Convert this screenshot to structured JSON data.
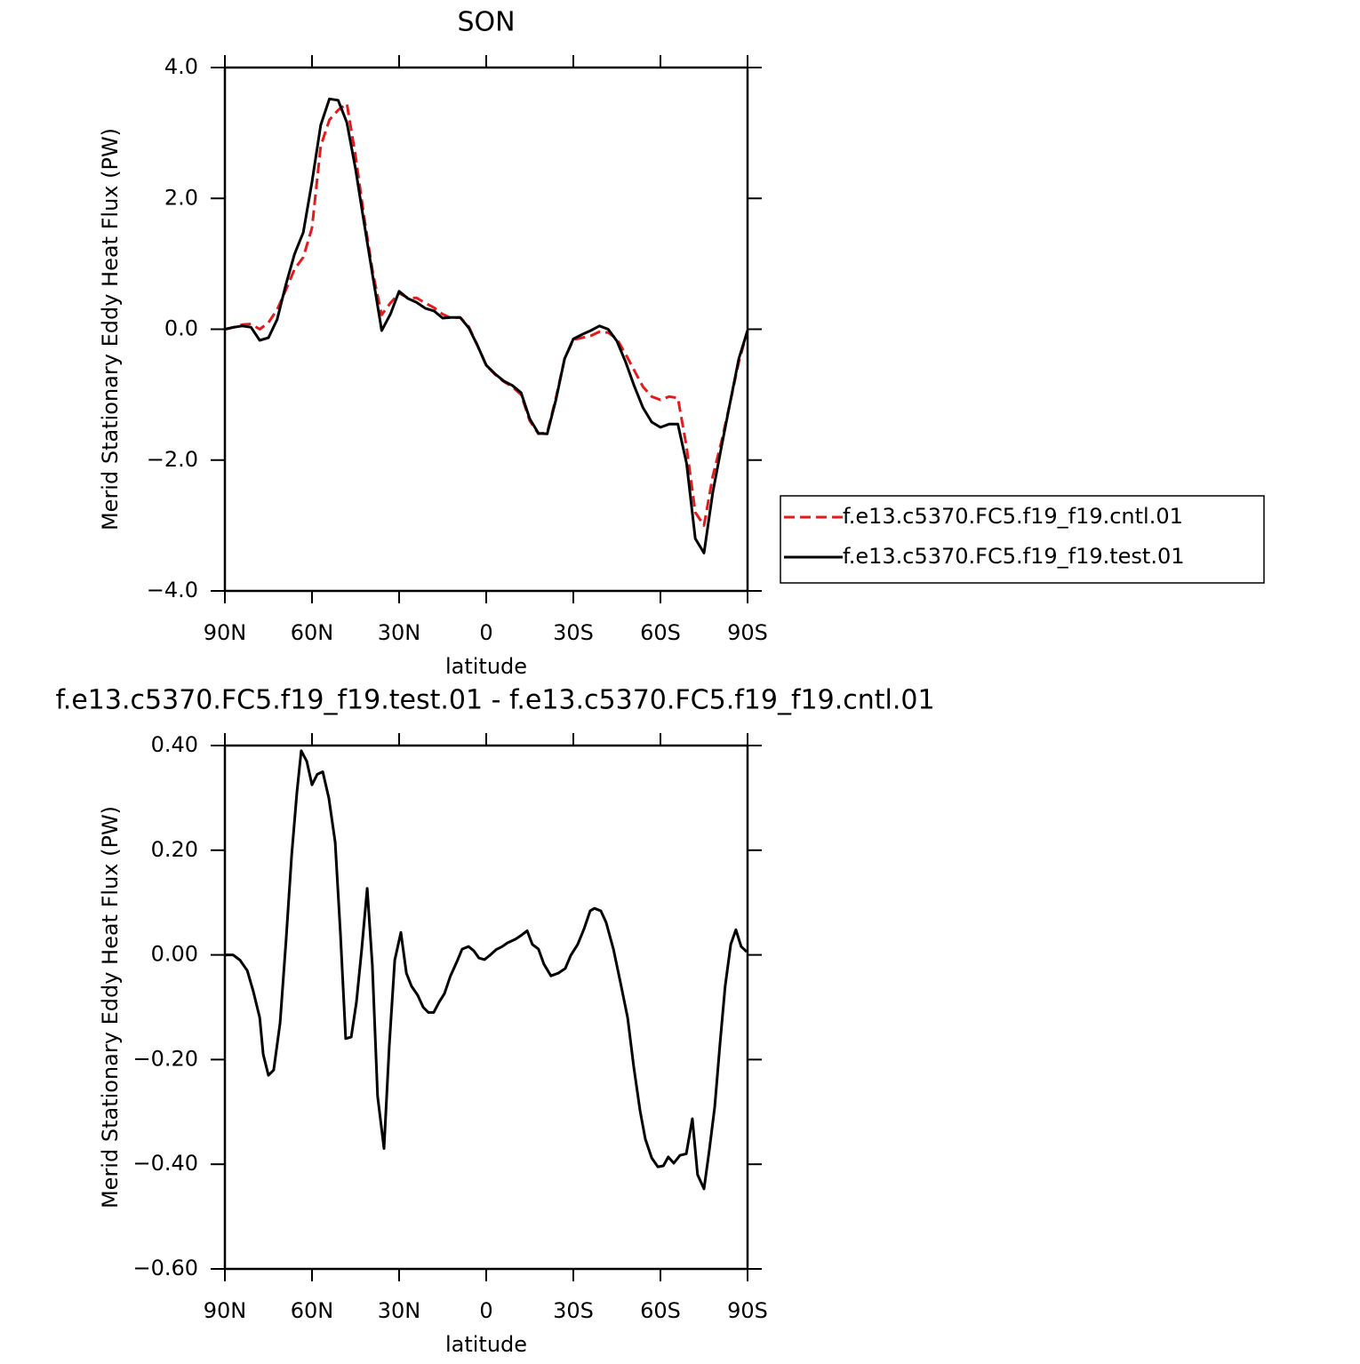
{
  "chart_data": [
    {
      "type": "line",
      "title": "SON",
      "xlabel": "latitude",
      "ylabel": "Merid Stationary Eddy Heat Flux (PW)",
      "x": [
        90,
        87,
        84,
        81,
        78,
        75,
        72,
        69,
        66,
        63,
        60,
        57,
        54,
        51,
        48,
        45,
        42,
        39,
        36,
        33,
        30,
        27,
        24,
        21,
        18,
        15,
        12,
        9,
        6,
        3,
        0,
        -3,
        -6,
        -9,
        -12,
        -15,
        -18,
        -21,
        -24,
        -27,
        -30,
        -33,
        -36,
        -39,
        -42,
        -45,
        -48,
        -51,
        -54,
        -57,
        -60,
        -63,
        -66,
        -69,
        -72,
        -75,
        -78,
        -81,
        -84,
        -87,
        -90
      ],
      "series": [
        {
          "name": "f.e13.c5370.FC5.f19_f19.cntl.01",
          "color": "#e41a1c",
          "style": "dashed",
          "values": [
            0.0,
            0.03,
            0.07,
            0.08,
            0.0,
            0.1,
            0.3,
            0.6,
            0.92,
            1.1,
            1.55,
            2.8,
            3.2,
            3.35,
            3.45,
            2.65,
            1.7,
            0.85,
            0.22,
            0.4,
            0.55,
            0.48,
            0.48,
            0.4,
            0.33,
            0.23,
            0.17,
            0.18,
            0.04,
            -0.25,
            -0.55,
            -0.69,
            -0.8,
            -0.88,
            -1.0,
            -1.4,
            -1.6,
            -1.58,
            -1.05,
            -0.45,
            -0.16,
            -0.13,
            -0.1,
            -0.04,
            -0.05,
            -0.15,
            -0.38,
            -0.63,
            -0.88,
            -1.03,
            -1.08,
            -1.03,
            -1.05,
            -1.8,
            -2.8,
            -3.0,
            -2.25,
            -1.72,
            -1.12,
            -0.5,
            -0.02
          ]
        },
        {
          "name": "f.e13.c5370.FC5.f19_f19.test.01",
          "color": "#000000",
          "style": "solid",
          "values": [
            0.0,
            0.03,
            0.05,
            0.03,
            -0.17,
            -0.13,
            0.15,
            0.68,
            1.15,
            1.48,
            2.25,
            3.12,
            3.52,
            3.5,
            3.16,
            2.45,
            1.61,
            0.79,
            -0.02,
            0.23,
            0.58,
            0.47,
            0.41,
            0.32,
            0.28,
            0.17,
            0.18,
            0.18,
            0.02,
            -0.25,
            -0.55,
            -0.68,
            -0.79,
            -0.86,
            -0.97,
            -1.37,
            -1.59,
            -1.6,
            -1.08,
            -0.45,
            -0.15,
            -0.08,
            -0.02,
            0.05,
            0.0,
            -0.18,
            -0.5,
            -0.87,
            -1.2,
            -1.42,
            -1.5,
            -1.45,
            -1.45,
            -2.05,
            -3.2,
            -3.42,
            -2.5,
            -1.8,
            -1.12,
            -0.45,
            -0.02
          ]
        }
      ],
      "xlim": [
        90,
        -90
      ],
      "xticks": [
        {
          "value": 90,
          "label": "90N"
        },
        {
          "value": 60,
          "label": "60N"
        },
        {
          "value": 30,
          "label": "30N"
        },
        0,
        {
          "value": -30,
          "label": "30S"
        },
        {
          "value": -60,
          "label": "60S"
        },
        {
          "value": -90,
          "label": "90S"
        }
      ],
      "ylim": [
        -4,
        4
      ],
      "yticks": [
        {
          "value": -4,
          "label": "−4.0"
        },
        {
          "value": -2,
          "label": "−2.0"
        },
        {
          "value": 0,
          "label": "0.0"
        },
        {
          "value": 2,
          "label": "2.0"
        },
        {
          "value": 4,
          "label": "4.0"
        }
      ],
      "legend": "right"
    },
    {
      "type": "line",
      "title": "f.e13.c5370.FC5.f19_f19.test.01 - f.e13.c5370.FC5.f19_f19.cntl.01",
      "xlabel": "latitude",
      "ylabel": "Merid Stationary Eddy Heat Flux (PW)",
      "x": [
        90,
        87.2,
        84.8,
        82.3,
        80.2,
        78,
        76.8,
        75,
        73.2,
        71,
        68.9,
        67,
        65.2,
        63.7,
        61.8,
        60,
        58.2,
        56.3,
        54.2,
        52,
        50.2,
        48.4,
        46.5,
        44.7,
        42.9,
        41,
        39.2,
        37.4,
        35.2,
        33.4,
        31.5,
        29.4,
        27.5,
        25.7,
        23.6,
        21.7,
        19.9,
        18.1,
        16.2,
        14.4,
        12.3,
        10.1,
        8.3,
        6.1,
        4.3,
        2.5,
        0.6,
        -1.2,
        -3.4,
        -5.5,
        -7.3,
        -10.1,
        -12.2,
        -14.1,
        -15.9,
        -18,
        -19.9,
        -22.3,
        -24.8,
        -27.2,
        -29.1,
        -31.5,
        -33.7,
        -35.8,
        -37.3,
        -39.5,
        -41.3,
        -43.8,
        -46.2,
        -48.7,
        -50.8,
        -53,
        -54.8,
        -57,
        -59.1,
        -61,
        -62.7,
        -64.6,
        -66.7,
        -68.9,
        -71,
        -72.8,
        -75,
        -76.8,
        -78.7,
        -80.5,
        -82.3,
        -84.2,
        -86,
        -87.8,
        -89.7
      ],
      "values": [
        0,
        0,
        -0.01,
        -0.03,
        -0.07,
        -0.12,
        -0.19,
        -0.23,
        -0.22,
        -0.13,
        0.03,
        0.19,
        0.31,
        0.39,
        0.37,
        0.325,
        0.345,
        0.35,
        0.3,
        0.215,
        0.04,
        -0.16,
        -0.157,
        -0.09,
        0.01,
        0.127,
        -0.02,
        -0.27,
        -0.37,
        -0.175,
        -0.01,
        0.043,
        -0.035,
        -0.06,
        -0.077,
        -0.1,
        -0.11,
        -0.11,
        -0.09,
        -0.074,
        -0.04,
        -0.013,
        0.011,
        0.016,
        0.008,
        -0.006,
        -0.009,
        -0.001,
        0.01,
        0.016,
        0.023,
        0.03,
        0.038,
        0.046,
        0.02,
        0.011,
        -0.018,
        -0.04,
        -0.035,
        -0.026,
        -0.001,
        0.02,
        0.05,
        0.084,
        0.089,
        0.084,
        0.062,
        0.011,
        -0.052,
        -0.12,
        -0.213,
        -0.298,
        -0.352,
        -0.388,
        -0.405,
        -0.403,
        -0.386,
        -0.398,
        -0.383,
        -0.38,
        -0.313,
        -0.42,
        -0.447,
        -0.374,
        -0.29,
        -0.17,
        -0.06,
        0.02,
        0.048,
        0.016,
        0.006
      ],
      "color": "#000000",
      "style": "solid",
      "xlim": [
        90,
        -90
      ],
      "xticks": [
        {
          "value": 90,
          "label": "90N"
        },
        {
          "value": 60,
          "label": "60N"
        },
        {
          "value": 30,
          "label": "30N"
        },
        0,
        {
          "value": -30,
          "label": "30S"
        },
        {
          "value": -60,
          "label": "60S"
        },
        {
          "value": -90,
          "label": "90S"
        }
      ],
      "ylim": [
        -0.6,
        0.4
      ],
      "yticks": [
        {
          "value": -0.6,
          "label": "−0.60"
        },
        {
          "value": -0.4,
          "label": "−0.40"
        },
        {
          "value": -0.2,
          "label": "−0.20"
        },
        {
          "value": 0,
          "label": "0.00"
        },
        {
          "value": 0.2,
          "label": "0.20"
        },
        {
          "value": 0.4,
          "label": "0.40"
        }
      ]
    }
  ]
}
